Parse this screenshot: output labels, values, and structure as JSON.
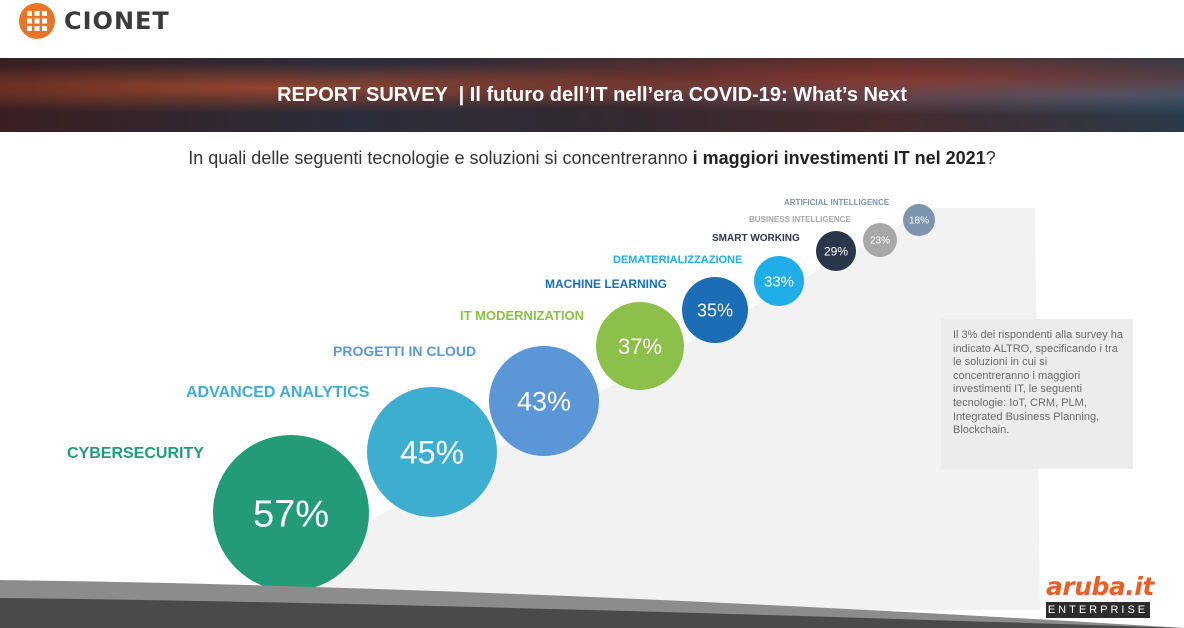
{
  "logo": {
    "text": "CIONET"
  },
  "banner": {
    "title": "REPORT SURVEY  | Il futuro dell’IT nell’era COVID-19: What’s Next"
  },
  "question": {
    "prefix": "In quali delle seguenti tecnologie e soluzioni si concentreranno ",
    "bold": "i maggiori investimenti IT nel 2021",
    "suffix": "?"
  },
  "note": {
    "text": "Il 3% dei rispondenti alla survey ha indicato ALTRO, specificando i tra le soluzioni in cui si concentreranno i maggiori investimenti IT, le seguenti tecnologie: IoT, CRM, PLM, Integrated Business Planning, Blockchain."
  },
  "brand": {
    "aruba_text": "aruba.it",
    "aruba_sub": "ENTERPRISE"
  },
  "colors": {
    "cybersecurity": "#239b78",
    "advanced_analytics": "#3eaed0",
    "progetti_cloud": "#5b97d6",
    "it_modernization": "#8cc04a",
    "machine_learning": "#1b6db5",
    "dematerializzazione": "#20aee8",
    "smart_working": "#2a3649",
    "business_intelligence": "#a8a8a8",
    "artificial_intelligence": "#7e93ad",
    "logo_orange": "#e8742a"
  },
  "chart_data": {
    "type": "bubble",
    "categories": [
      "CYBERSECURITY",
      "ADVANCED ANALYTICS",
      "PROGETTI IN CLOUD",
      "IT MODERNIZATION",
      "MACHINE LEARNING",
      "DEMATERIALIZZAZIONE",
      "SMART WORKING",
      "BUSINESS INTELLIGENCE",
      "ARTIFICIAL INTELLIGENCE"
    ],
    "values": [
      57,
      45,
      43,
      37,
      35,
      33,
      29,
      23,
      18
    ],
    "labels": [
      "57%",
      "45%",
      "43%",
      "37%",
      "35%",
      "33%",
      "29%",
      "23%",
      "18%"
    ],
    "title": "In quali delle seguenti tecnologie e soluzioni si concentreranno i maggiori investimenti IT nel 2021?"
  }
}
